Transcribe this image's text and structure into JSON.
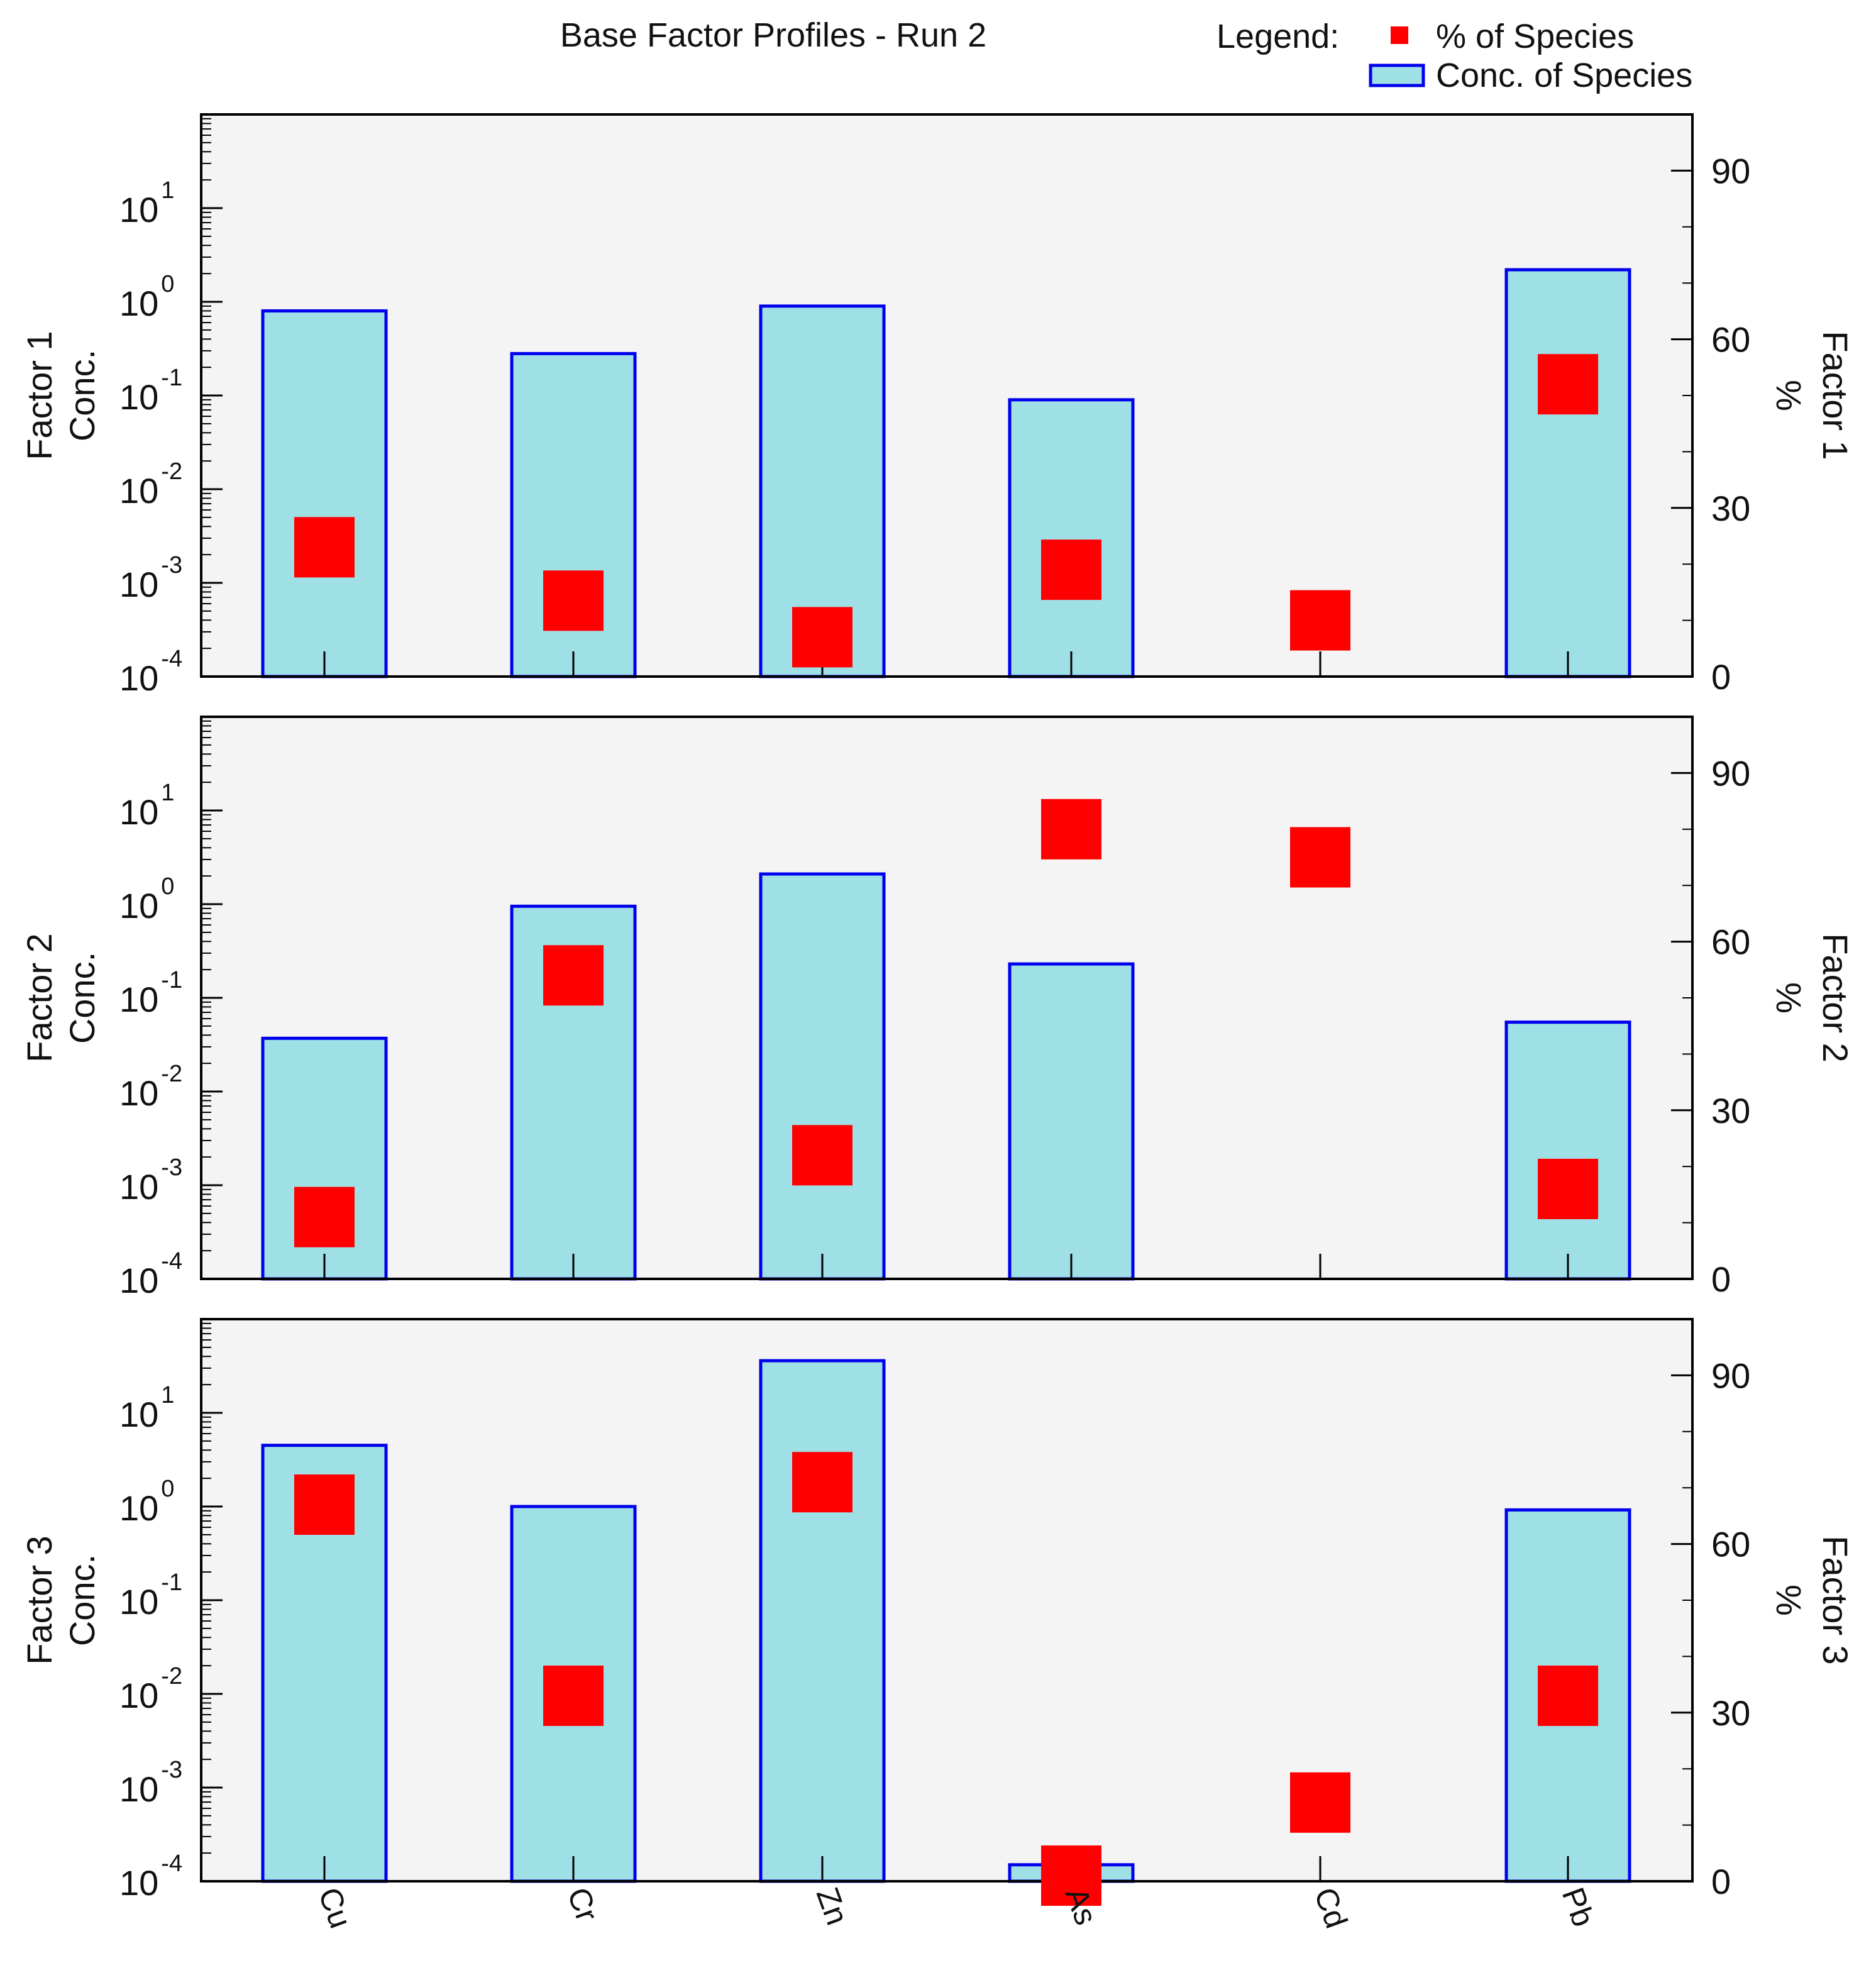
{
  "chart_data": {
    "type": "bar",
    "title": "Base Factor Profiles - Run 2",
    "legend": {
      "label": "Legend:",
      "placement": "top-right",
      "entries": [
        {
          "name": "% of Species",
          "marker": "square",
          "color": "#ff0000"
        },
        {
          "name": "Conc. of Species",
          "marker": "bar",
          "color": "#9fe0e6",
          "edge": "#0000ee"
        }
      ]
    },
    "categories": [
      "Cu",
      "Cr",
      "Zn",
      "As",
      "Cd",
      "Pb"
    ],
    "left_axis": {
      "scale": "log",
      "range_exponents": [
        -4,
        2
      ],
      "tick_base": "10",
      "tick_exponents": [
        "1",
        "0",
        "-1",
        "-2",
        "-3",
        "-4"
      ]
    },
    "right_axis": {
      "label": "%",
      "range": [
        0,
        100
      ],
      "ticks": [
        "0",
        "30",
        "60",
        "90"
      ]
    },
    "colors": {
      "background": "#ffffff",
      "plot_background": "#f4f4f4",
      "bar_fill": "#9fe0e6",
      "bar_edge": "#0000ee",
      "marker": "#ff0000",
      "axis": "#000000"
    },
    "series": [
      {
        "name": "Factor 1",
        "ylabel_left": "Conc.",
        "conc": [
          0.8,
          0.28,
          0.9,
          0.09,
          null,
          2.2
        ],
        "percent": [
          23,
          13.5,
          7,
          19,
          10,
          52
        ]
      },
      {
        "name": "Factor 2",
        "ylabel_left": "Conc.",
        "conc": [
          0.037,
          0.95,
          2.1,
          0.23,
          null,
          0.055
        ],
        "percent": [
          11,
          54,
          22,
          null,
          75,
          16
        ]
      },
      {
        "name": "Factor 3",
        "ylabel_left": "Conc.",
        "conc": [
          4.5,
          1.0,
          36,
          0.00015,
          null,
          0.92
        ],
        "percent": [
          67,
          33,
          71,
          1,
          14,
          33
        ]
      }
    ],
    "extra_points": [
      {
        "series": "Factor 2",
        "category": "As",
        "percent": 80
      }
    ]
  }
}
